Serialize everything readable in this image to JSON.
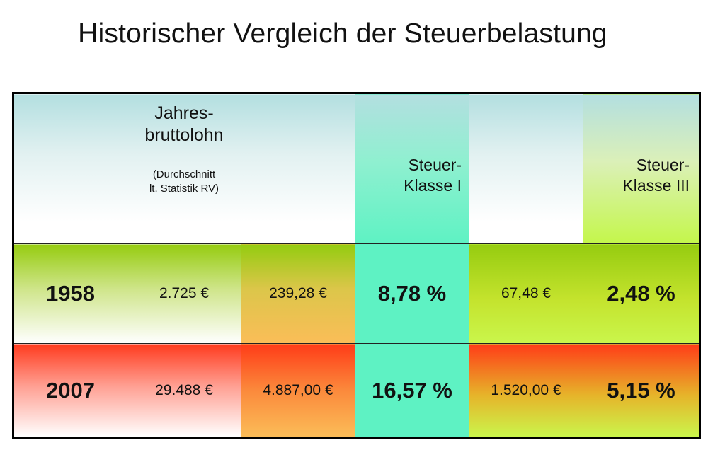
{
  "title": "Historischer Vergleich der Steuerbelastung",
  "header": {
    "col1": "",
    "col2_main_line1": "Jahres-",
    "col2_main_line2": "bruttolohn",
    "col2_note_line1": "(Durchschnitt",
    "col2_note_line2": "lt. Statistik RV)",
    "col3": "",
    "col4_line1": "Steuer-",
    "col4_line2": "Klasse I",
    "col5": "",
    "col6_line1": "Steuer-",
    "col6_line2": "Klasse III"
  },
  "rows": [
    {
      "year": "1958",
      "salary": "2.725 €",
      "tax_k1": "239,28 €",
      "pct_k1": "8,78 %",
      "tax_k3": "67,48 €",
      "pct_k3": "2,48 %"
    },
    {
      "year": "2007",
      "salary": "29.488 €",
      "tax_k1": "4.887,00 €",
      "pct_k1": "16,57 %",
      "tax_k3": "1.520,00 €",
      "pct_k3": "5,15 %"
    }
  ],
  "colors": {
    "header_teal": "#b3dfe0",
    "turquoise": "#5ef2c3",
    "lime": "#caf64c",
    "green": "#96cc10",
    "orange": "#fbbd58",
    "red": "#ff3c18"
  }
}
